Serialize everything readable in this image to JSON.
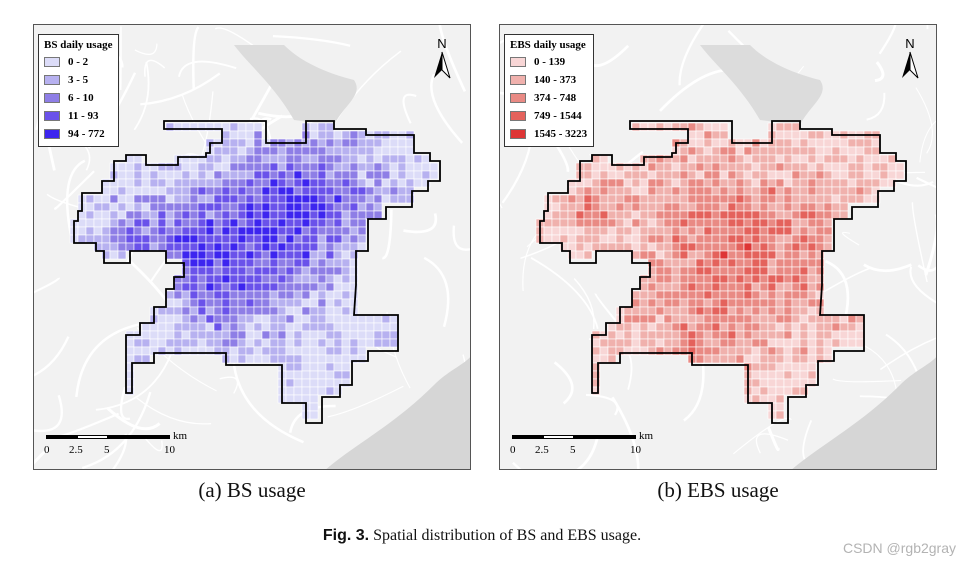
{
  "panels": [
    {
      "id": "a",
      "legend_title": "BS daily usage",
      "legend": [
        {
          "label": "0 - 2",
          "color": "#dcdcf8"
        },
        {
          "label": "3 - 5",
          "color": "#b7b1f0"
        },
        {
          "label": "6 - 10",
          "color": "#8e7ee6"
        },
        {
          "label": "11 - 93",
          "color": "#6a52ea"
        },
        {
          "label": "94 - 772",
          "color": "#3d25ef"
        }
      ],
      "north_label": "N",
      "scale": {
        "labels": [
          "0",
          "2.5",
          "5",
          "10"
        ],
        "unit": "km"
      },
      "caption": "(a) BS usage"
    },
    {
      "id": "b",
      "legend_title": "EBS daily usage",
      "legend": [
        {
          "label": "0 - 139",
          "color": "#f8d6d6"
        },
        {
          "label": "140 - 373",
          "color": "#f0b1ad"
        },
        {
          "label": "374 - 748",
          "color": "#e98a84"
        },
        {
          "label": "749 - 1544",
          "color": "#e4625c"
        },
        {
          "label": "1545 - 3223",
          "color": "#de3535"
        }
      ],
      "north_label": "N",
      "scale": {
        "labels": [
          "0",
          "2.5",
          "5",
          "10"
        ],
        "unit": "km"
      },
      "caption": "(b) EBS usage"
    }
  ],
  "figure_caption": {
    "label": "Fig. 3.",
    "text": "Spatial distribution of BS and EBS usage."
  },
  "watermark": "CSDN @rgb2gray"
}
